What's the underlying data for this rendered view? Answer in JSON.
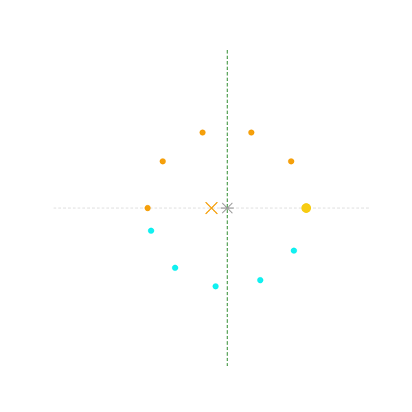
{
  "colors": {
    "background": "#ffffff",
    "horizontal_guide": "#d9d9d9",
    "vertical_guide": "#2e8b2e",
    "orange": "#f5a00c",
    "cyan": "#12f0f0",
    "gold": "#f7cc14",
    "grey_marker": "#9a9a9a"
  },
  "diagram": {
    "horizontal_guide": {
      "style": "dashed",
      "color_key": "horizontal_guide"
    },
    "vertical_guide": {
      "style": "dashed",
      "color_key": "vertical_guide"
    },
    "point_groups": [
      {
        "name": "orange-point",
        "color_key": "orange",
        "count": 5
      },
      {
        "name": "cyan-point",
        "color_key": "cyan",
        "count": 5
      }
    ],
    "highlight_point": {
      "color_key": "gold"
    },
    "markers": [
      {
        "name": "orange-x-marker",
        "shape": "x",
        "color_key": "orange"
      },
      {
        "name": "center-star-marker",
        "shape": "star",
        "color_key": "grey_marker"
      }
    ]
  }
}
